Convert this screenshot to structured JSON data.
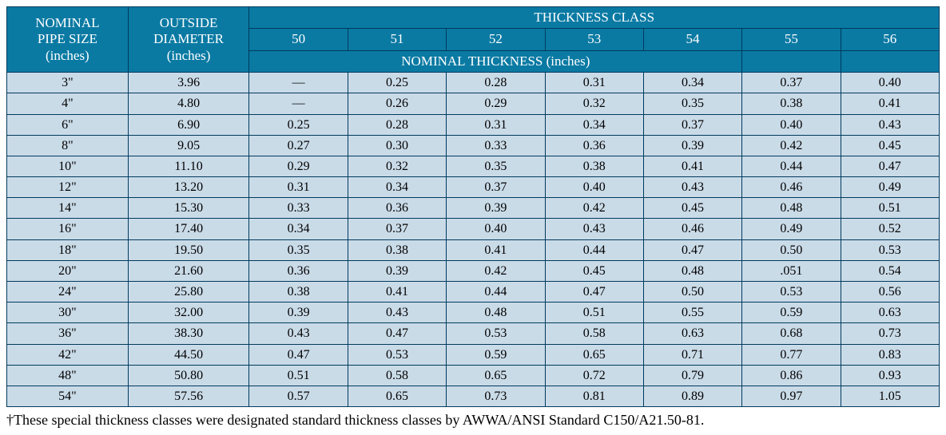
{
  "colors": {
    "header_bg": "#0a7aa3",
    "header_fg": "#ffffff",
    "body_bg": "#cadbe8",
    "body_fg": "#000000",
    "border": "#003a5d"
  },
  "header": {
    "pipe_size_l1": "NOMINAL",
    "pipe_size_l2": "PIPE SIZE",
    "pipe_size_l3": "(inches)",
    "od_l1": "OUTSIDE",
    "od_l2": "DIAMETER",
    "od_l3": "(inches)",
    "thickness_class": "THICKNESS CLASS",
    "classes": [
      "50",
      "51",
      "52",
      "53",
      "54",
      "55",
      "56"
    ],
    "nominal_thickness": "NOMINAL THICKNESS (inches)"
  },
  "rows": [
    {
      "size": "3\"",
      "od": "3.96",
      "c": [
        "—",
        "0.25",
        "0.28",
        "0.31",
        "0.34",
        "0.37",
        "0.40"
      ]
    },
    {
      "size": "4\"",
      "od": "4.80",
      "c": [
        "—",
        "0.26",
        "0.29",
        "0.32",
        "0.35",
        "0.38",
        "0.41"
      ]
    },
    {
      "size": "6\"",
      "od": "6.90",
      "c": [
        "0.25",
        "0.28",
        "0.31",
        "0.34",
        "0.37",
        "0.40",
        "0.43"
      ]
    },
    {
      "size": "8\"",
      "od": "9.05",
      "c": [
        "0.27",
        "0.30",
        "0.33",
        "0.36",
        "0.39",
        "0.42",
        "0.45"
      ]
    },
    {
      "size": "10\"",
      "od": "11.10",
      "c": [
        "0.29",
        "0.32",
        "0.35",
        "0.38",
        "0.41",
        "0.44",
        "0.47"
      ]
    },
    {
      "size": "12\"",
      "od": "13.20",
      "c": [
        "0.31",
        "0.34",
        "0.37",
        "0.40",
        "0.43",
        "0.46",
        "0.49"
      ]
    },
    {
      "size": "14\"",
      "od": "15.30",
      "c": [
        "0.33",
        "0.36",
        "0.39",
        "0.42",
        "0.45",
        "0.48",
        "0.51"
      ]
    },
    {
      "size": "16\"",
      "od": "17.40",
      "c": [
        "0.34",
        "0.37",
        "0.40",
        "0.43",
        "0.46",
        "0.49",
        "0.52"
      ]
    },
    {
      "size": "18\"",
      "od": "19.50",
      "c": [
        "0.35",
        "0.38",
        "0.41",
        "0.44",
        "0.47",
        "0.50",
        "0.53"
      ]
    },
    {
      "size": "20\"",
      "od": "21.60",
      "c": [
        "0.36",
        "0.39",
        "0.42",
        "0.45",
        "0.48",
        ".051",
        "0.54"
      ]
    },
    {
      "size": "24\"",
      "od": "25.80",
      "c": [
        "0.38",
        "0.41",
        "0.44",
        "0.47",
        "0.50",
        "0.53",
        "0.56"
      ]
    },
    {
      "size": "30\"",
      "od": "32.00",
      "c": [
        "0.39",
        "0.43",
        "0.48",
        "0.51",
        "0.55",
        "0.59",
        "0.63"
      ]
    },
    {
      "size": "36\"",
      "od": "38.30",
      "c": [
        "0.43",
        "0.47",
        "0.53",
        "0.58",
        "0.63",
        "0.68",
        "0.73"
      ]
    },
    {
      "size": "42\"",
      "od": "44.50",
      "c": [
        "0.47",
        "0.53",
        "0.59",
        "0.65",
        "0.71",
        "0.77",
        "0.83"
      ]
    },
    {
      "size": "48\"",
      "od": "50.80",
      "c": [
        "0.51",
        "0.58",
        "0.65",
        "0.72",
        "0.79",
        "0.86",
        "0.93"
      ]
    },
    {
      "size": "54\"",
      "od": "57.56",
      "c": [
        "0.57",
        "0.65",
        "0.73",
        "0.81",
        "0.89",
        "0.97",
        "1.05"
      ]
    }
  ],
  "footnote": "†These special thickness classes were designated standard thickness classes by AWWA/ANSI Standard C150/A21.50-81."
}
